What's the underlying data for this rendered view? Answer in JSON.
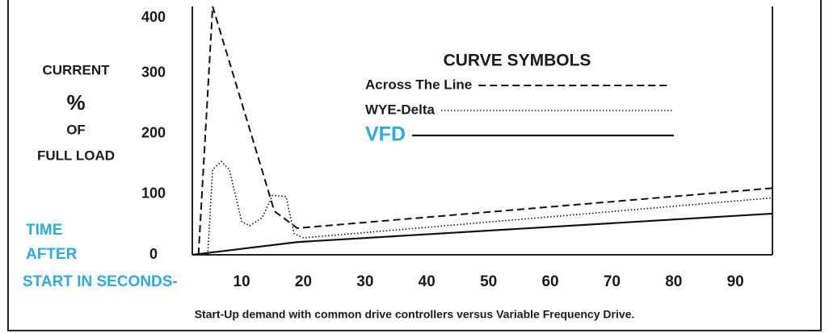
{
  "chart_data": {
    "type": "line",
    "legend_title": "CURVE SYMBOLS",
    "y_label": [
      "CURRENT",
      "%",
      "OF",
      "FULL LOAD"
    ],
    "x_label": [
      "TIME",
      "AFTER",
      "START IN SECONDS-"
    ],
    "caption": "Start-Up demand with common drive controllers versus Variable Frequency Drive.",
    "xlim": [
      2,
      96
    ],
    "ylim": [
      0,
      410
    ],
    "xticks": [
      10,
      20,
      30,
      40,
      50,
      60,
      70,
      80,
      90
    ],
    "yticks": [
      0,
      100,
      200,
      300,
      400
    ],
    "series": [
      {
        "name": "Across The Line",
        "color": "#111111",
        "dash": "dashed",
        "x": [
          3,
          5.3,
          15.3,
          19,
          96
        ],
        "values": [
          0,
          410,
          72,
          44,
          110
        ]
      },
      {
        "name": "WYE-Delta",
        "color": "#111111",
        "dash": "dotted",
        "x": [
          4.5,
          5.3,
          6.7,
          8,
          10,
          11.3,
          13.3,
          15,
          17.2,
          18.5,
          20,
          96
        ],
        "values": [
          0,
          141,
          154,
          141,
          55,
          48,
          61,
          98,
          96,
          35,
          28,
          94
        ]
      },
      {
        "name": "VFD",
        "color": "#111111",
        "dash": "solid",
        "x": [
          2,
          19,
          96
        ],
        "values": [
          0,
          21,
          68
        ]
      }
    ]
  }
}
